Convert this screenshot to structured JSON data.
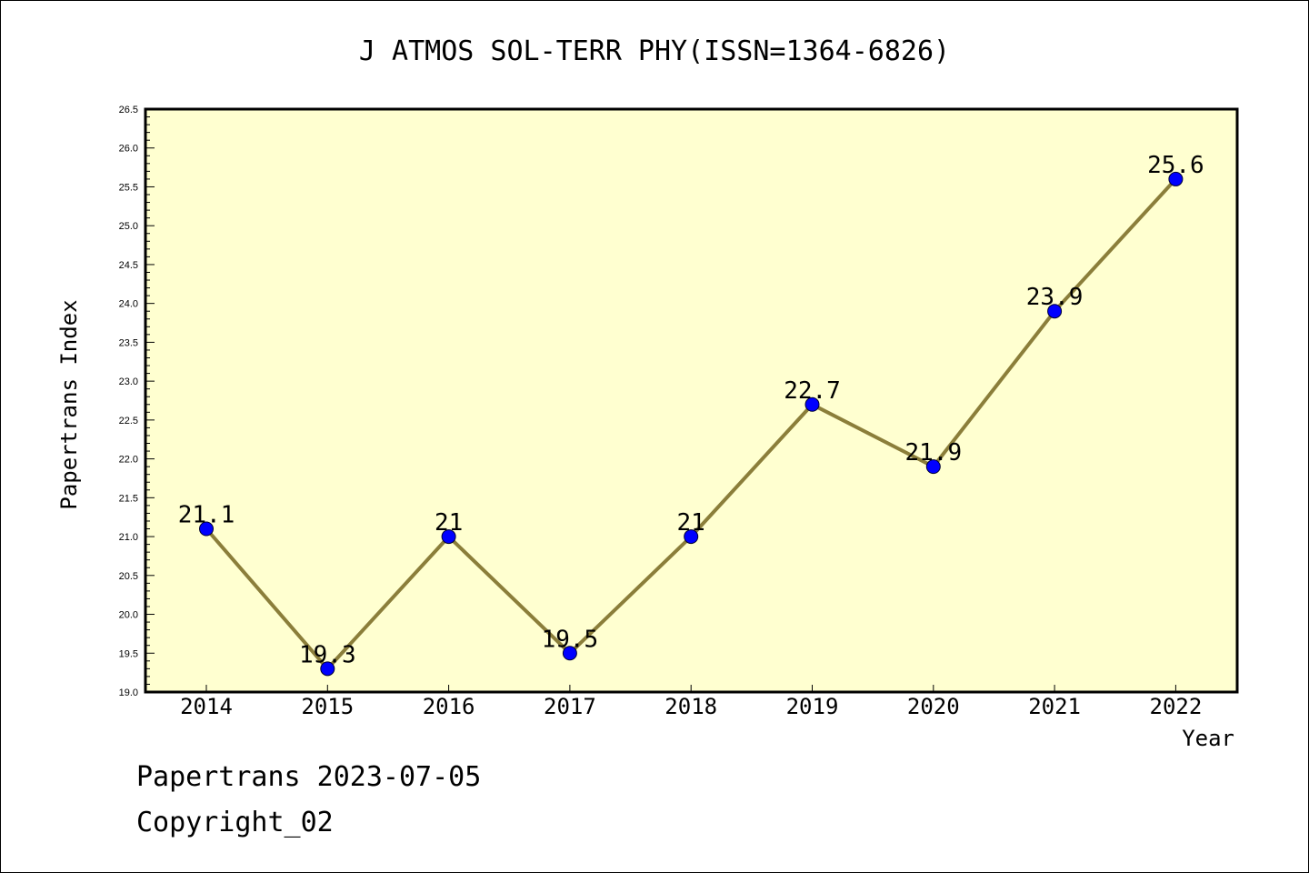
{
  "chart_data": {
    "type": "line",
    "title": "J ATMOS SOL-TERR PHY(ISSN=1364-6826)",
    "xlabel": "Year",
    "ylabel": "Papertrans Index",
    "categories": [
      "2014",
      "2015",
      "2016",
      "2017",
      "2018",
      "2019",
      "2020",
      "2021",
      "2022"
    ],
    "series": [
      {
        "values": [
          21.1,
          19.3,
          21.0,
          19.5,
          21.0,
          22.7,
          21.9,
          23.9,
          25.6
        ]
      }
    ],
    "data_labels": [
      "21.1",
      "19.3",
      "21",
      "19.5",
      "21",
      "22.7",
      "21.9",
      "23.9",
      "25.6"
    ],
    "ylim": [
      19.0,
      26.5
    ],
    "yticks": [
      "19.0",
      "19.5",
      "20.0",
      "20.5",
      "21.0",
      "21.5",
      "22.0",
      "22.5",
      "23.0",
      "23.5",
      "24.0",
      "24.5",
      "25.0",
      "25.5",
      "26.0",
      "26.5"
    ],
    "grid": false,
    "legend": "none",
    "colors": {
      "plot_background": "#ffffd0",
      "line": "#8b7e3a",
      "marker": "#0000ff"
    }
  },
  "footer": {
    "date_text": "Papertrans 2023-07-05",
    "copyright_text": "Copyright_02"
  }
}
